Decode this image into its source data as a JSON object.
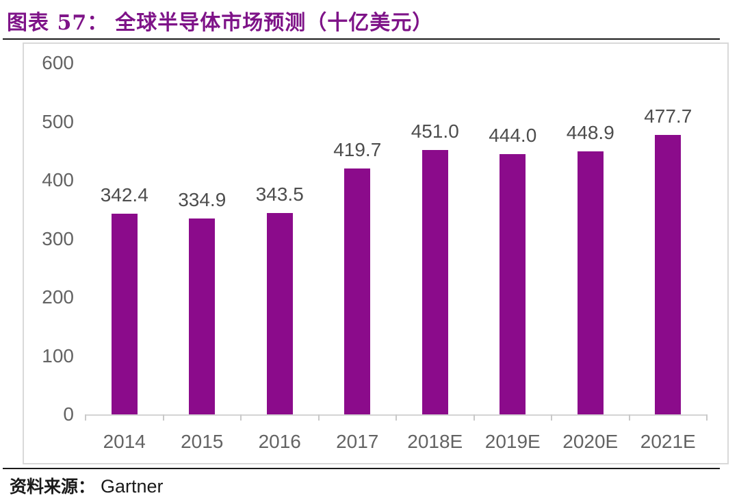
{
  "header": {
    "label": "图表 57：",
    "title": "全球半导体市场预测（十亿美元）"
  },
  "footer": {
    "source_label": "资料来源：",
    "source_value": "Gartner"
  },
  "colors": {
    "bar": "#8B0B8B",
    "title": "#7E1388",
    "divider": "#1A1A1A",
    "axis_line": "#D4D4D4",
    "axis_tick_label": "#636363",
    "data_label": "#4D4D4D"
  },
  "chart_data": {
    "type": "bar",
    "title": "全球半导体市场预测（十亿美元）",
    "unit": "十亿美元",
    "categories": [
      "2014",
      "2015",
      "2016",
      "2017",
      "2018E",
      "2019E",
      "2020E",
      "2021E"
    ],
    "values": [
      342.4,
      334.9,
      343.5,
      419.7,
      451.0,
      444.0,
      448.9,
      477.7
    ],
    "value_labels": [
      "342.4",
      "334.9",
      "343.5",
      "419.7",
      "451.0",
      "444.0",
      "448.9",
      "477.7"
    ],
    "xlabel": "",
    "ylabel": "",
    "ylim": [
      0,
      600
    ],
    "yticks": [
      0,
      100,
      200,
      300,
      400,
      500,
      600
    ],
    "grid": false,
    "legend": false,
    "data_labels_shown": true
  }
}
